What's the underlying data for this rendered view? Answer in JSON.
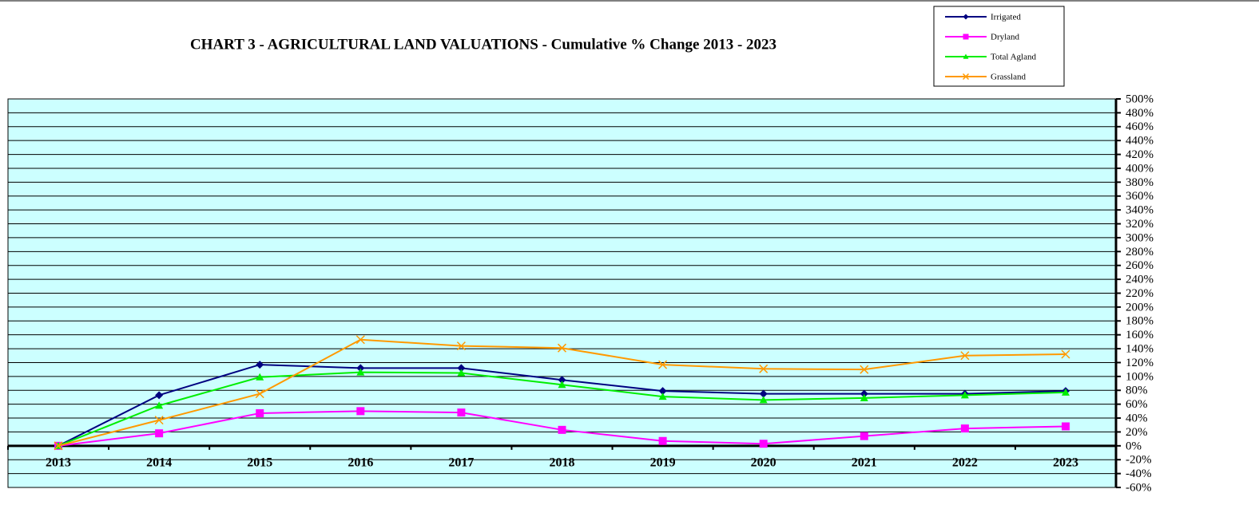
{
  "chart_data": {
    "type": "line",
    "title": "CHART 3 - AGRICULTURAL LAND VALUATIONS - Cumulative % Change 2013 - 2023",
    "categories": [
      "2013",
      "2014",
      "2015",
      "2016",
      "2017",
      "2018",
      "2019",
      "2020",
      "2021",
      "2022",
      "2023"
    ],
    "series": [
      {
        "name": "Irrigated",
        "color": "#000080",
        "marker": "diamond",
        "values": [
          0,
          73,
          117,
          112,
          112,
          95,
          79,
          75,
          75,
          75,
          79
        ]
      },
      {
        "name": "Dryland",
        "color": "#ff00ff",
        "marker": "square",
        "values": [
          0,
          18,
          47,
          50,
          48,
          23,
          7,
          3,
          14,
          25,
          28
        ]
      },
      {
        "name": "Total Agland",
        "color": "#00ee00",
        "marker": "triangle",
        "values": [
          0,
          58,
          99,
          106,
          105,
          88,
          71,
          66,
          69,
          73,
          77
        ]
      },
      {
        "name": "Grassland",
        "color": "#ff9900",
        "marker": "x",
        "values": [
          0,
          37,
          75,
          153,
          144,
          141,
          117,
          111,
          110,
          130,
          132
        ]
      }
    ],
    "ylim": [
      -60,
      500
    ],
    "yticks": [
      {
        "value": -60,
        "label": "-60%"
      },
      {
        "value": -40,
        "label": "-40%"
      },
      {
        "value": -20,
        "label": "-20%"
      },
      {
        "value": 0,
        "label": "0%"
      },
      {
        "value": 20,
        "label": "20%"
      },
      {
        "value": 40,
        "label": "40%"
      },
      {
        "value": 60,
        "label": "60%"
      },
      {
        "value": 80,
        "label": "80%"
      },
      {
        "value": 100,
        "label": "100%"
      },
      {
        "value": 120,
        "label": "120%"
      },
      {
        "value": 140,
        "label": "140%"
      },
      {
        "value": 160,
        "label": "160%"
      },
      {
        "value": 180,
        "label": "180%"
      },
      {
        "value": 200,
        "label": "200%"
      },
      {
        "value": 220,
        "label": "220%"
      },
      {
        "value": 240,
        "label": "240%"
      },
      {
        "value": 260,
        "label": "260%"
      },
      {
        "value": 280,
        "label": "280%"
      },
      {
        "value": 300,
        "label": "300%"
      },
      {
        "value": 320,
        "label": "320%"
      },
      {
        "value": 340,
        "label": "340%"
      },
      {
        "value": 360,
        "label": "360%"
      },
      {
        "value": 380,
        "label": "380%"
      },
      {
        "value": 400,
        "label": "400%"
      },
      {
        "value": 420,
        "label": "420%"
      },
      {
        "value": 440,
        "label": "440%"
      },
      {
        "value": 460,
        "label": "460%"
      },
      {
        "value": 480,
        "label": "480%"
      },
      {
        "value": 500,
        "label": "500%"
      }
    ],
    "grid": true,
    "background": "#ccffff",
    "legend": "top-right"
  }
}
